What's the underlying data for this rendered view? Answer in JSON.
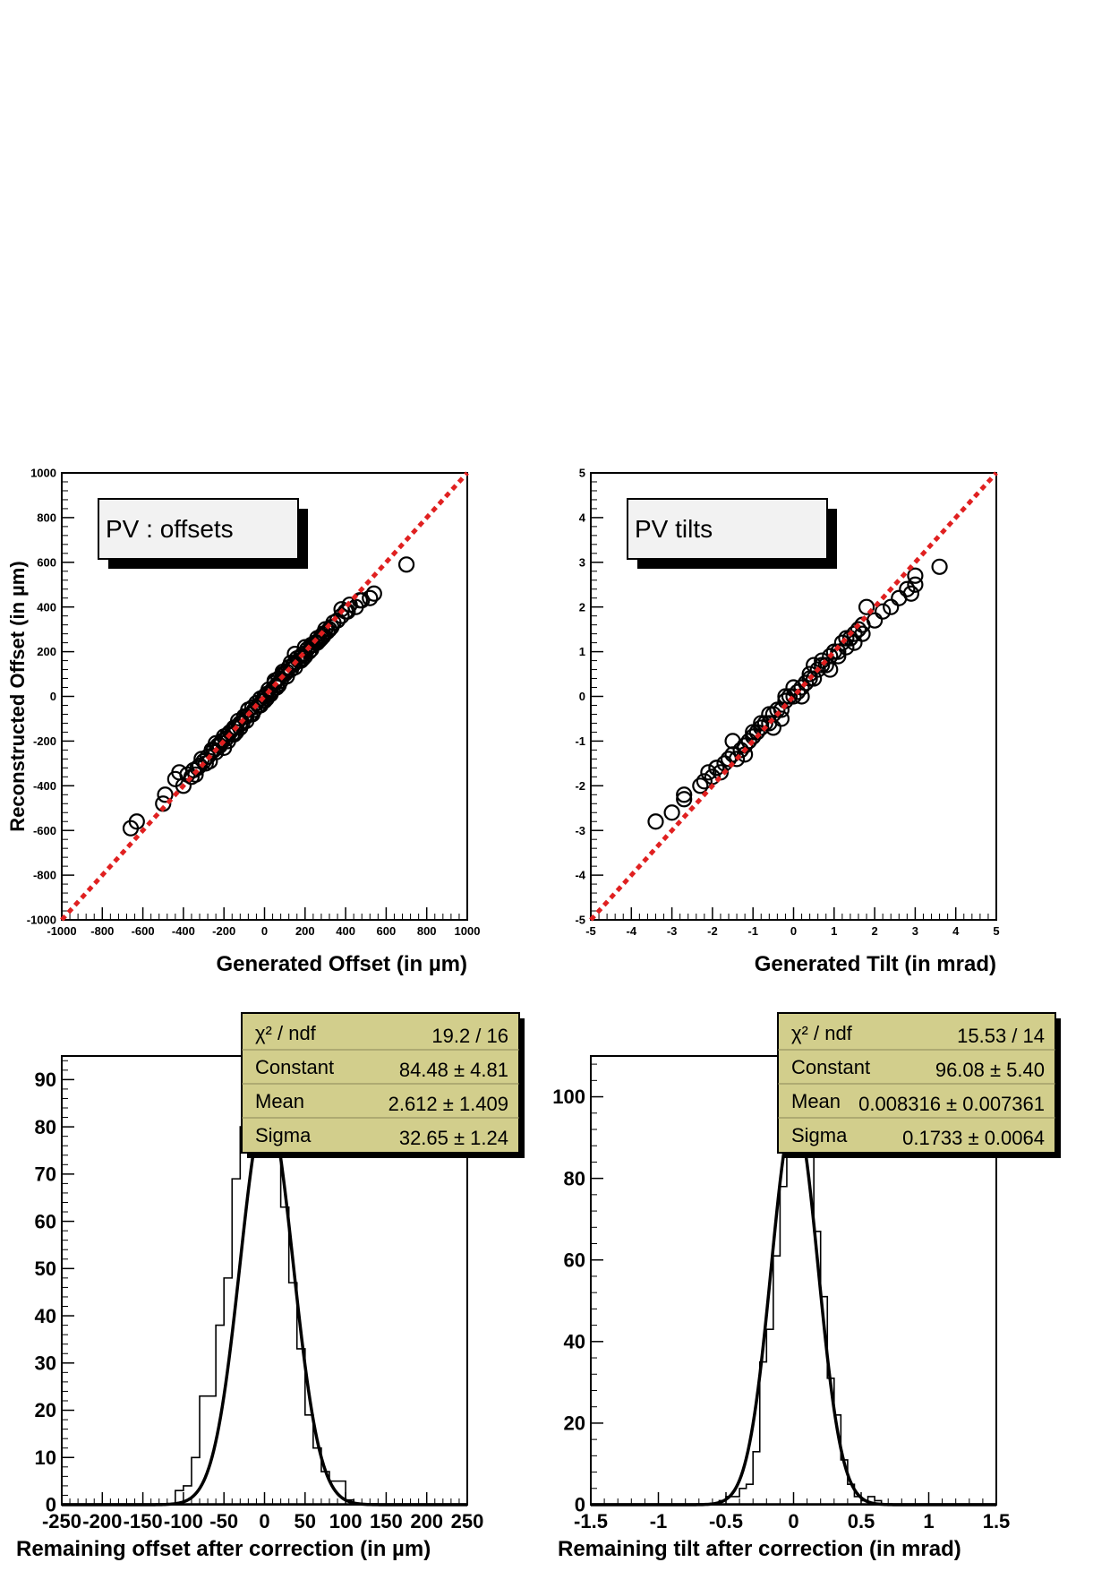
{
  "chart_data": [
    {
      "type": "scatter",
      "legend_box_text": "PV : offsets",
      "xlabel": "Generated Offset (in µm)",
      "ylabel": "Reconstructed Offset (in µm)",
      "xlim": [
        -1000,
        1000
      ],
      "ylim": [
        -1000,
        1000
      ],
      "xticks": [
        "-1000",
        "-800",
        "-600",
        "-400",
        "-200",
        "0",
        "200",
        "400",
        "600",
        "800",
        "1000"
      ],
      "yticks": [
        "-1000",
        "-800",
        "-600",
        "-400",
        "-200",
        "0",
        "200",
        "400",
        "600",
        "800",
        "1000"
      ],
      "reference_line": {
        "x": [
          -1000,
          1000
        ],
        "y": [
          -1000,
          1000
        ],
        "color": "#e02020",
        "style": "dashed"
      },
      "points": {
        "x": [
          -660,
          -630,
          -500,
          -490,
          -440,
          -420,
          -400,
          -380,
          -360,
          -340,
          -320,
          -300,
          -280,
          -270,
          -250,
          -240,
          -220,
          -210,
          -200,
          -190,
          -180,
          -170,
          -160,
          -150,
          -140,
          -130,
          -120,
          -110,
          -100,
          -90,
          -80,
          -70,
          -60,
          -50,
          -40,
          -30,
          -20,
          -10,
          0,
          10,
          20,
          30,
          40,
          50,
          60,
          70,
          80,
          90,
          100,
          110,
          120,
          130,
          140,
          150,
          160,
          170,
          180,
          190,
          200,
          210,
          220,
          230,
          240,
          250,
          260,
          270,
          280,
          290,
          300,
          310,
          320,
          340,
          360,
          380,
          400,
          420,
          450,
          470,
          480,
          520,
          540,
          700,
          -350,
          -330,
          -290,
          -260,
          -230,
          -150,
          -120,
          -60,
          -20,
          30,
          70,
          110,
          150,
          190,
          240,
          290,
          330,
          410,
          -310,
          -240,
          -180,
          -90,
          0,
          60,
          130,
          200,
          260,
          320,
          380,
          -80,
          90,
          180,
          -200,
          50,
          230,
          -140,
          10,
          150,
          280
        ],
        "y": [
          -590,
          -560,
          -480,
          -440,
          -370,
          -340,
          -400,
          -350,
          -360,
          -350,
          -310,
          -290,
          -270,
          -290,
          -240,
          -250,
          -220,
          -200,
          -230,
          -190,
          -170,
          -160,
          -170,
          -140,
          -140,
          -110,
          -120,
          -120,
          -90,
          -90,
          -60,
          -80,
          -50,
          -60,
          -30,
          -40,
          -10,
          -20,
          0,
          10,
          30,
          20,
          30,
          60,
          50,
          80,
          70,
          100,
          100,
          110,
          130,
          120,
          140,
          150,
          170,
          160,
          180,
          190,
          180,
          210,
          200,
          230,
          230,
          240,
          260,
          250,
          270,
          280,
          300,
          290,
          300,
          330,
          340,
          360,
          380,
          410,
          400,
          430,
          430,
          440,
          460,
          590,
          -330,
          -320,
          -300,
          -240,
          -220,
          -170,
          -140,
          -80,
          -40,
          10,
          50,
          90,
          130,
          170,
          230,
          270,
          310,
          380,
          -280,
          -210,
          -200,
          -110,
          -20,
          40,
          150,
          220,
          240,
          300,
          390,
          -60,
          110,
          160,
          -180,
          70,
          210,
          -160,
          -10,
          190,
          260
        ]
      }
    },
    {
      "type": "scatter",
      "legend_box_text": "PV tilts",
      "xlabel": "Generated Tilt (in mrad)",
      "ylabel": "",
      "xlim": [
        -5,
        5
      ],
      "ylim": [
        -5,
        5
      ],
      "xticks": [
        "-5",
        "-4",
        "-3",
        "-2",
        "-1",
        "0",
        "1",
        "2",
        "3",
        "4",
        "5"
      ],
      "yticks": [
        "-5",
        "-4",
        "-3",
        "-2",
        "-1",
        "0",
        "1",
        "2",
        "3",
        "4",
        "5"
      ],
      "reference_line": {
        "x": [
          -5,
          5
        ],
        "y": [
          -5,
          5
        ],
        "color": "#e02020",
        "style": "dashed"
      },
      "points": {
        "x": [
          -3.4,
          -3.0,
          -2.7,
          -2.7,
          -2.3,
          -2.2,
          -2.1,
          -2.0,
          -1.9,
          -1.8,
          -1.7,
          -1.6,
          -1.5,
          -1.4,
          -1.3,
          -1.2,
          -1.1,
          -1.0,
          -0.9,
          -0.8,
          -0.7,
          -0.6,
          -0.5,
          -0.4,
          -0.3,
          -0.2,
          -0.1,
          0.0,
          0.1,
          0.2,
          0.3,
          0.4,
          0.5,
          0.6,
          0.7,
          0.8,
          0.9,
          1.0,
          1.1,
          1.2,
          1.3,
          1.4,
          1.5,
          1.6,
          1.7,
          1.8,
          2.0,
          2.2,
          2.4,
          2.6,
          2.8,
          2.9,
          3.0,
          3.0,
          3.6,
          -1.5,
          -1.2,
          -0.8,
          -0.5,
          -0.2,
          0.2,
          0.5,
          0.9,
          1.3,
          1.7,
          -1.9,
          -1.0,
          -0.3,
          0.4,
          1.1,
          1.5,
          -0.6,
          0.7,
          0.0
        ],
        "y": [
          -2.8,
          -2.6,
          -2.3,
          -2.2,
          -2.0,
          -1.9,
          -1.7,
          -1.8,
          -1.6,
          -1.7,
          -1.5,
          -1.4,
          -1.3,
          -1.4,
          -1.2,
          -1.1,
          -1.0,
          -0.9,
          -0.8,
          -0.7,
          -0.6,
          -0.6,
          -0.4,
          -0.3,
          -0.3,
          -0.1,
          0.0,
          0.0,
          0.1,
          0.2,
          0.3,
          0.4,
          0.4,
          0.6,
          0.7,
          0.7,
          0.9,
          1.0,
          1.0,
          1.2,
          1.3,
          1.3,
          1.4,
          1.5,
          1.6,
          2.0,
          1.7,
          1.9,
          2.0,
          2.2,
          2.4,
          2.3,
          2.5,
          2.7,
          2.9,
          -1.0,
          -1.3,
          -0.6,
          -0.7,
          0.0,
          0.0,
          0.7,
          0.6,
          1.1,
          1.4,
          -1.6,
          -0.8,
          -0.5,
          0.5,
          0.9,
          1.2,
          -0.4,
          0.8,
          0.2
        ]
      }
    },
    {
      "type": "bar",
      "subtype": "histogram_with_gaussian_fit",
      "xlabel": "Remaining offset after correction (in µm)",
      "ylabel": "",
      "xlim": [
        -250,
        250
      ],
      "ylim": [
        0,
        95
      ],
      "xticks": [
        "-250",
        "-200",
        "-150",
        "-100",
        "-50",
        "0",
        "50",
        "100",
        "150",
        "200",
        "250"
      ],
      "yticks": [
        "0",
        "10",
        "20",
        "30",
        "40",
        "50",
        "60",
        "70",
        "80",
        "90"
      ],
      "bin_edges": [
        -130,
        -110,
        -100,
        -90,
        -80,
        -70,
        -60,
        -50,
        -40,
        -30,
        -20,
        -10,
        0,
        10,
        20,
        30,
        40,
        50,
        60,
        70,
        80,
        90,
        100,
        110,
        120,
        130
      ],
      "counts": [
        0,
        3,
        4,
        10,
        23,
        23,
        38,
        48,
        69,
        80,
        86,
        87,
        87,
        80,
        63,
        47,
        33,
        19,
        12,
        7,
        5,
        5,
        1,
        0,
        0
      ],
      "fit": {
        "constant": 84.48,
        "mean": 2.612,
        "sigma": 32.65
      },
      "stats": {
        "chi2_label": "χ² / ndf",
        "chi2_value": "19.2 / 16",
        "constant_label": "Constant",
        "constant_value": "84.48 ± 4.81",
        "mean_label": "Mean",
        "mean_value": "2.612 ± 1.409",
        "sigma_label": "Sigma",
        "sigma_value": "32.65 ± 1.24"
      }
    },
    {
      "type": "bar",
      "subtype": "histogram_with_gaussian_fit",
      "xlabel": "Remaining tilt after correction (in mrad)",
      "ylabel": "",
      "xlim": [
        -1.5,
        1.5
      ],
      "ylim": [
        0,
        110
      ],
      "xticks": [
        "-1.5",
        "-1",
        "-0.5",
        "0",
        "0.5",
        "1",
        "1.5"
      ],
      "yticks": [
        "0",
        "20",
        "40",
        "60",
        "80",
        "100"
      ],
      "bin_edges": [
        -0.55,
        -0.5,
        -0.45,
        -0.4,
        -0.35,
        -0.3,
        -0.25,
        -0.2,
        -0.15,
        -0.1,
        -0.05,
        0.0,
        0.05,
        0.1,
        0.15,
        0.2,
        0.25,
        0.3,
        0.35,
        0.4,
        0.45,
        0.5,
        0.55,
        0.6,
        0.65,
        0.7
      ],
      "counts": [
        1,
        2,
        2,
        4,
        5,
        13,
        35,
        43,
        61,
        78,
        95,
        99,
        99,
        90,
        67,
        51,
        31,
        22,
        11,
        5,
        2,
        1,
        2,
        1,
        0
      ],
      "fit": {
        "constant": 96.08,
        "mean": 0.008316,
        "sigma": 0.1733
      },
      "stats": {
        "chi2_label": "χ² / ndf",
        "chi2_value": "15.53 / 14",
        "constant_label": "Constant",
        "constant_value": "96.08 ± 5.40",
        "mean_label": "Mean",
        "mean_value": "0.008316 ± 0.007361",
        "sigma_label": "Sigma",
        "sigma_value": "0.1733 ± 0.0064"
      }
    }
  ]
}
